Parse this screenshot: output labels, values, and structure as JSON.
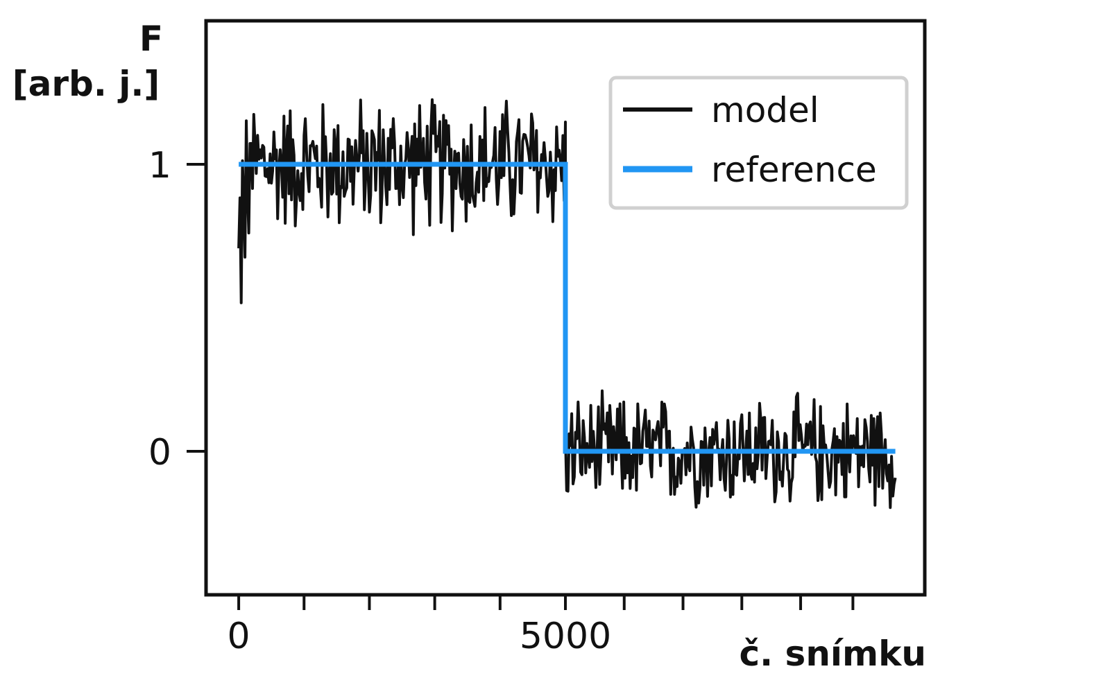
{
  "chart_data": {
    "type": "line",
    "ylabel_line1": "F",
    "ylabel_line2": "[arb. j.]",
    "xlabel": "č. snímku",
    "xlim": [
      -500,
      10500
    ],
    "ylim": [
      -0.5,
      1.5
    ],
    "x_tick_labels": [
      {
        "value": 0,
        "label": "0"
      },
      {
        "value": 5000,
        "label": "5000"
      }
    ],
    "x_minor_ticks": [
      0,
      1000,
      2000,
      3000,
      4000,
      5000,
      5900,
      6800,
      7700,
      8600,
      9400
    ],
    "y_tick_labels": [
      {
        "value": 0,
        "label": "0"
      },
      {
        "value": 1,
        "label": "1"
      }
    ],
    "grid": false,
    "legend_position": "top-right",
    "series": [
      {
        "name": "model",
        "color": "#111111",
        "segments": [
          {
            "x_start": 0,
            "x_end": 5000,
            "mean": 1.0,
            "noise_amplitude": 0.27,
            "min": 0.55,
            "max": 1.25
          },
          {
            "x_start": 5000,
            "x_end": 10050,
            "mean": 0.0,
            "noise_amplitude": 0.22,
            "min": -0.25,
            "max": 0.38
          }
        ],
        "points_per_segment": 260
      },
      {
        "name": "reference",
        "color": "#2196f3",
        "x": [
          0,
          5000,
          5000,
          10050
        ],
        "y": [
          1,
          1,
          0,
          0
        ]
      }
    ]
  }
}
